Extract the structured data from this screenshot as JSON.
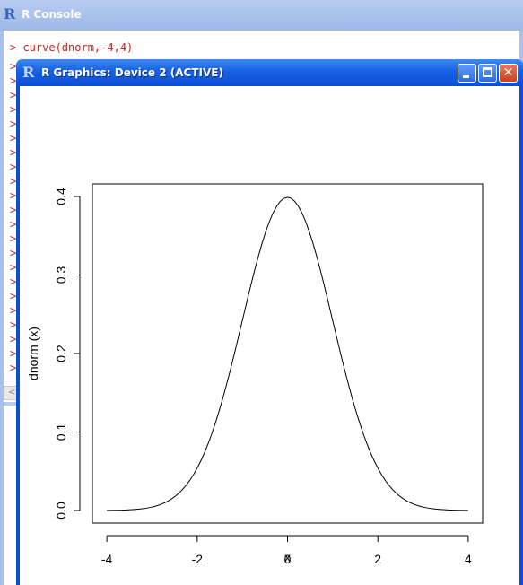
{
  "console": {
    "title": "R Console",
    "command": "> curve(dnorm,-4,4)",
    "prompt": ">",
    "prompt_count": 22,
    "scroll_arrow": "<"
  },
  "graphics": {
    "title": "R Graphics: Device 2 (ACTIVE)"
  },
  "chart_data": {
    "type": "line",
    "function": "dnorm",
    "xlabel": "x",
    "ylabel": "dnorm (x)",
    "xlim": [
      -4,
      4
    ],
    "ylim": [
      0,
      0.4
    ],
    "xticks": [
      "-4",
      "-2",
      "0",
      "2",
      "4"
    ],
    "yticks": [
      "0.0",
      "0.1",
      "0.2",
      "0.3",
      "0.4"
    ],
    "series": [
      {
        "x": [
          -4,
          -3.5,
          -3,
          -2.5,
          -2,
          -1.5,
          -1,
          -0.5,
          0,
          0.5,
          1,
          1.5,
          2,
          2.5,
          3,
          3.5,
          4
        ],
        "y": [
          0.0001,
          0.0009,
          0.0044,
          0.0175,
          0.054,
          0.1295,
          0.242,
          0.3521,
          0.3989,
          0.3521,
          0.242,
          0.1295,
          0.054,
          0.0175,
          0.0044,
          0.0009,
          0.0001
        ]
      }
    ]
  }
}
